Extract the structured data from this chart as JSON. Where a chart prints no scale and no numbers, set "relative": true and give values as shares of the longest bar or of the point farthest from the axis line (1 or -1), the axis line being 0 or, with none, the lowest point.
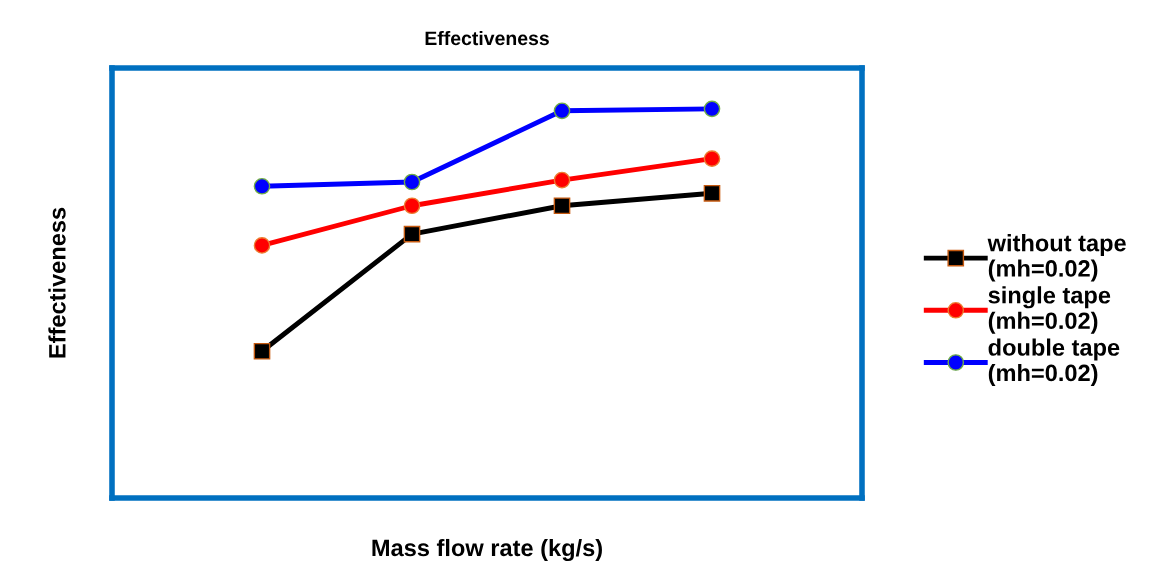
{
  "chart_data": {
    "type": "line",
    "title": "Effectiveness",
    "xlabel": "Mass flow rate (kg/s)",
    "ylabel": "Effectiveness",
    "categories": [
      null,
      null,
      null,
      null
    ],
    "relative": true,
    "legend": "right",
    "grid": false,
    "series": [
      {
        "name": "without tape (mh=0.02)",
        "color": "#000000",
        "marker": "square",
        "values": [
          0.377,
          0.678,
          0.751,
          0.783
        ]
      },
      {
        "name": "single tape (mh=0.02)",
        "color": "#ff0000",
        "marker": "circle",
        "values": [
          0.649,
          0.751,
          0.817,
          0.872
        ]
      },
      {
        "name": "double tape (mh=0.02)",
        "color": "#0000ff",
        "marker": "circle",
        "values": [
          0.801,
          0.812,
          0.995,
          1.0
        ]
      }
    ]
  }
}
